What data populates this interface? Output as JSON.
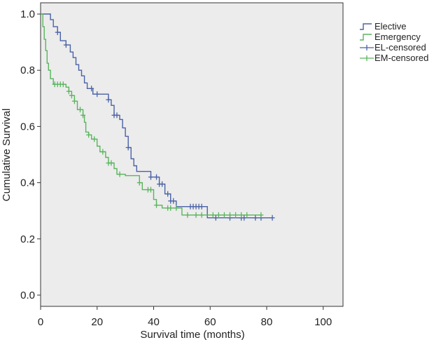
{
  "chart_data": {
    "type": "line",
    "subtype": "kaplan-meier-step",
    "title": "",
    "xlabel": "Survival time (months)",
    "ylabel": "Cumulative Survival",
    "xlim": [
      0,
      107
    ],
    "ylim": [
      -0.04,
      1.04
    ],
    "x_ticks": [
      0,
      20,
      40,
      60,
      80,
      100
    ],
    "y_ticks": [
      0.0,
      0.2,
      0.4,
      0.6,
      0.8,
      1.0
    ],
    "y_tick_labels": [
      "0.0",
      "0.2",
      "0.4",
      "0.6",
      "0.8",
      "1.0"
    ],
    "grid": false,
    "legend_position": "outside-top-right",
    "plot_background": "#ececec",
    "series": [
      {
        "name": "Elective",
        "color": "#4a62a6",
        "points": [
          [
            0,
            1.0
          ],
          [
            3.5,
            1.0
          ],
          [
            3.5,
            0.98
          ],
          [
            4.5,
            0.98
          ],
          [
            4.5,
            0.955
          ],
          [
            6,
            0.955
          ],
          [
            6,
            0.935
          ],
          [
            7,
            0.935
          ],
          [
            7,
            0.905
          ],
          [
            9,
            0.905
          ],
          [
            9,
            0.89
          ],
          [
            10.5,
            0.89
          ],
          [
            10.5,
            0.865
          ],
          [
            11.5,
            0.865
          ],
          [
            11.5,
            0.845
          ],
          [
            12.5,
            0.845
          ],
          [
            12.5,
            0.82
          ],
          [
            13.5,
            0.82
          ],
          [
            13.5,
            0.8
          ],
          [
            14.5,
            0.8
          ],
          [
            14.5,
            0.78
          ],
          [
            15.5,
            0.78
          ],
          [
            15.5,
            0.755
          ],
          [
            16.5,
            0.755
          ],
          [
            16.5,
            0.735
          ],
          [
            18.5,
            0.735
          ],
          [
            18.5,
            0.715
          ],
          [
            24,
            0.715
          ],
          [
            24,
            0.695
          ],
          [
            25,
            0.695
          ],
          [
            25,
            0.675
          ],
          [
            26,
            0.675
          ],
          [
            26,
            0.64
          ],
          [
            28,
            0.64
          ],
          [
            28,
            0.625
          ],
          [
            29,
            0.625
          ],
          [
            29,
            0.595
          ],
          [
            30,
            0.595
          ],
          [
            30,
            0.565
          ],
          [
            31,
            0.565
          ],
          [
            31,
            0.525
          ],
          [
            32,
            0.525
          ],
          [
            32,
            0.485
          ],
          [
            33,
            0.485
          ],
          [
            33,
            0.46
          ],
          [
            34,
            0.46
          ],
          [
            34,
            0.44
          ],
          [
            39,
            0.44
          ],
          [
            39,
            0.42
          ],
          [
            42,
            0.42
          ],
          [
            42,
            0.395
          ],
          [
            44,
            0.395
          ],
          [
            44,
            0.36
          ],
          [
            46,
            0.36
          ],
          [
            46,
            0.335
          ],
          [
            48,
            0.335
          ],
          [
            48,
            0.315
          ],
          [
            59,
            0.315
          ],
          [
            59,
            0.275
          ],
          [
            82,
            0.275
          ]
        ],
        "censored_x": [
          6,
          9,
          18,
          20,
          24,
          26,
          27,
          31,
          39,
          41,
          42,
          43,
          45,
          46,
          47,
          53,
          54,
          55,
          56,
          57,
          62,
          67,
          71,
          72,
          76,
          78,
          82
        ]
      },
      {
        "name": "Emergency",
        "color": "#5ab45e",
        "points": [
          [
            0,
            1.0
          ],
          [
            0.8,
            1.0
          ],
          [
            0.8,
            0.955
          ],
          [
            1.3,
            0.955
          ],
          [
            1.3,
            0.91
          ],
          [
            1.8,
            0.91
          ],
          [
            1.8,
            0.87
          ],
          [
            2.3,
            0.87
          ],
          [
            2.3,
            0.825
          ],
          [
            2.8,
            0.825
          ],
          [
            2.8,
            0.8
          ],
          [
            3.5,
            0.8
          ],
          [
            3.5,
            0.77
          ],
          [
            4.5,
            0.77
          ],
          [
            4.5,
            0.75
          ],
          [
            9,
            0.75
          ],
          [
            9,
            0.74
          ],
          [
            10,
            0.74
          ],
          [
            10,
            0.725
          ],
          [
            11,
            0.725
          ],
          [
            11,
            0.71
          ],
          [
            12,
            0.71
          ],
          [
            12,
            0.69
          ],
          [
            13,
            0.69
          ],
          [
            13,
            0.66
          ],
          [
            15,
            0.66
          ],
          [
            15,
            0.64
          ],
          [
            15.5,
            0.64
          ],
          [
            15.5,
            0.615
          ],
          [
            16,
            0.615
          ],
          [
            16,
            0.58
          ],
          [
            17,
            0.58
          ],
          [
            17,
            0.57
          ],
          [
            18,
            0.57
          ],
          [
            18,
            0.555
          ],
          [
            20,
            0.555
          ],
          [
            20,
            0.53
          ],
          [
            21,
            0.53
          ],
          [
            21,
            0.51
          ],
          [
            23,
            0.51
          ],
          [
            23,
            0.49
          ],
          [
            24,
            0.49
          ],
          [
            24,
            0.47
          ],
          [
            26,
            0.47
          ],
          [
            26,
            0.45
          ],
          [
            27,
            0.45
          ],
          [
            27,
            0.43
          ],
          [
            30,
            0.43
          ],
          [
            30,
            0.425
          ],
          [
            35,
            0.425
          ],
          [
            35,
            0.4
          ],
          [
            36,
            0.4
          ],
          [
            36,
            0.375
          ],
          [
            40,
            0.375
          ],
          [
            40,
            0.34
          ],
          [
            41,
            0.34
          ],
          [
            41,
            0.32
          ],
          [
            43,
            0.32
          ],
          [
            43,
            0.31
          ],
          [
            50,
            0.31
          ],
          [
            50,
            0.285
          ],
          [
            78,
            0.285
          ]
        ],
        "censored_x": [
          5,
          6,
          7,
          8,
          10,
          11,
          12,
          14,
          15,
          17,
          19,
          22,
          24,
          25,
          28,
          35,
          38,
          39,
          41,
          45,
          46,
          48,
          52,
          55,
          57,
          61,
          63,
          65,
          67,
          69,
          71,
          73,
          78
        ]
      }
    ],
    "legend": [
      {
        "label": "Elective",
        "kind": "line",
        "color": "#4a62a6"
      },
      {
        "label": "Emergency",
        "kind": "line",
        "color": "#5ab45e"
      },
      {
        "label": "EL-censored",
        "kind": "censor",
        "color": "#4a62a6"
      },
      {
        "label": "EM-censored",
        "kind": "censor",
        "color": "#5ab45e"
      }
    ]
  }
}
